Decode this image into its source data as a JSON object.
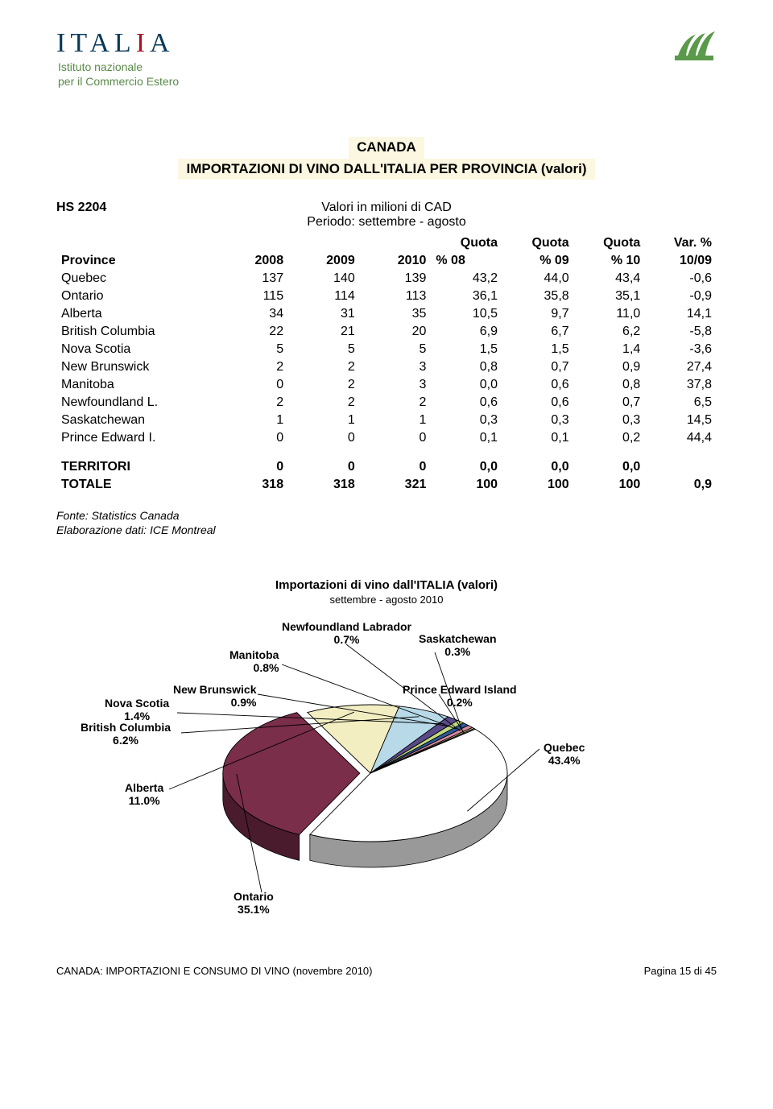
{
  "header": {
    "org_line1": "Istituto nazionale",
    "org_line2": "per il Commercio Estero"
  },
  "title": {
    "line1": "CANADA",
    "line2": "IMPORTAZIONI DI VINO DALL'ITALIA PER PROVINCIA (valori)"
  },
  "meta": {
    "hs_label": "HS 2204",
    "desc_line1": "Valori in milioni di CAD",
    "desc_line2": "Periodo: settembre - agosto"
  },
  "table": {
    "columns": [
      "Province",
      "2008",
      "2009",
      "2010",
      "Quota % 08",
      "Quota % 09",
      "Quota % 10",
      "Var. % 10/09"
    ],
    "header_groups": {
      "province": "Province",
      "years": [
        "2008",
        "2009",
        "2010"
      ],
      "quota_top": "Quota",
      "quota_bottom": [
        "% 08",
        "% 09",
        "% 10"
      ],
      "var_top": "Var. %",
      "var_bottom": "10/09"
    },
    "rows": [
      [
        "Quebec",
        "137",
        "140",
        "139",
        "43,2",
        "44,0",
        "43,4",
        "-0,6"
      ],
      [
        "Ontario",
        "115",
        "114",
        "113",
        "36,1",
        "35,8",
        "35,1",
        "-0,9"
      ],
      [
        "Alberta",
        "34",
        "31",
        "35",
        "10,5",
        "9,7",
        "11,0",
        "14,1"
      ],
      [
        "British Columbia",
        "22",
        "21",
        "20",
        "6,9",
        "6,7",
        "6,2",
        "-5,8"
      ],
      [
        "Nova Scotia",
        "5",
        "5",
        "5",
        "1,5",
        "1,5",
        "1,4",
        "-3,6"
      ],
      [
        "New Brunswick",
        "2",
        "2",
        "3",
        "0,8",
        "0,7",
        "0,9",
        "27,4"
      ],
      [
        "Manitoba",
        "0",
        "2",
        "3",
        "0,0",
        "0,6",
        "0,8",
        "37,8"
      ],
      [
        "Newfoundland L.",
        "2",
        "2",
        "2",
        "0,6",
        "0,6",
        "0,7",
        "6,5"
      ],
      [
        "Saskatchewan",
        "1",
        "1",
        "1",
        "0,3",
        "0,3",
        "0,3",
        "14,5"
      ],
      [
        "Prince Edward I.",
        "0",
        "0",
        "0",
        "0,1",
        "0,1",
        "0,2",
        "44,4"
      ]
    ],
    "territori": [
      "TERRITORI",
      "0",
      "0",
      "0",
      "0,0",
      "0,0",
      "0,0",
      ""
    ],
    "totale": [
      "TOTALE",
      "318",
      "318",
      "321",
      "100",
      "100",
      "100",
      "0,9"
    ]
  },
  "source": {
    "line1": "Fonte: Statistics Canada",
    "line2": "Elaborazione dati: ICE Montreal"
  },
  "chart": {
    "title": "Importazioni di vino dall'ITALIA (valori)",
    "subtitle": "settembre - agosto 2010",
    "type": "pie-3d-exploded",
    "slices": [
      {
        "label": "Quebec",
        "pct_label": "43.4%",
        "value": 43.4,
        "color": "#ffffff"
      },
      {
        "label": "Ontario",
        "pct_label": "35.1%",
        "value": 35.1,
        "color": "#7a2e4a"
      },
      {
        "label": "Alberta",
        "pct_label": "11.0%",
        "value": 11.0,
        "color": "#f3eec2"
      },
      {
        "label": "British Columbia",
        "pct_label": "6.2%",
        "value": 6.2,
        "color": "#b7d9e8"
      },
      {
        "label": "Nova Scotia",
        "pct_label": "1.4%",
        "value": 1.4,
        "color": "#5a4a8a"
      },
      {
        "label": "New Brunswick",
        "pct_label": "0.9%",
        "value": 0.9,
        "color": "#c0d880"
      },
      {
        "label": "Manitoba",
        "pct_label": "0.8%",
        "value": 0.8,
        "color": "#2a5a9a"
      },
      {
        "label": "Newfoundland Labrador",
        "pct_label": "0.7%",
        "value": 0.7,
        "color": "#d88aa0"
      },
      {
        "label": "Saskatchewan",
        "pct_label": "0.3%",
        "value": 0.3,
        "color": "#d8d090"
      },
      {
        "label": "Prince Edward Island",
        "pct_label": "0.2%",
        "value": 0.2,
        "color": "#88aaca"
      }
    ],
    "background_color": "#ffffff",
    "border_color": "#000000"
  },
  "footer": {
    "left": "CANADA: IMPORTAZIONI E CONSUMO DI VINO (novembre 2010)",
    "right": "Pagina 15 di 45"
  }
}
